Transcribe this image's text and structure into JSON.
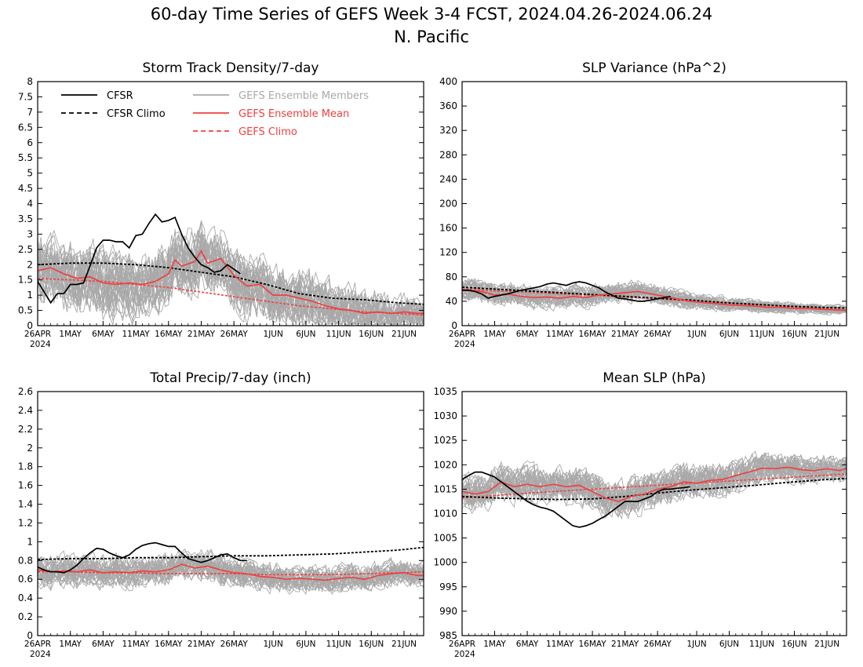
{
  "figure": {
    "title_line1": "60-day Time Series of GEFS Week 3-4 FCST, 2024.04.26-2024.06.24",
    "title_line2": "N. Pacific"
  },
  "colors": {
    "cfsr": "#000000",
    "ens_member": "#a9a9a9",
    "ens_mean": "#f04040",
    "gefs_climo": "#f04040"
  },
  "legend": {
    "cfsr": "CFSR",
    "cfsr_climo": "CFSR Climo",
    "ens_members": "GEFS Ensemble Members",
    "ens_mean": "GEFS Ensemble Mean",
    "gefs_climo": "GEFS Climo"
  },
  "x_axis": {
    "start_date": "2024-04-26",
    "end_date": "2024-06-24",
    "ticks": [
      {
        "day": 0,
        "label": "26APR"
      },
      {
        "day": 5,
        "label": "1MAY"
      },
      {
        "day": 10,
        "label": "6MAY"
      },
      {
        "day": 15,
        "label": "11MAY"
      },
      {
        "day": 20,
        "label": "16MAY"
      },
      {
        "day": 25,
        "label": "21MAY"
      },
      {
        "day": 30,
        "label": "26MAY"
      },
      {
        "day": 36,
        "label": "1JUN"
      },
      {
        "day": 41,
        "label": "6JUN"
      },
      {
        "day": 46,
        "label": "11JUN"
      },
      {
        "day": 51,
        "label": "16JUN"
      },
      {
        "day": 56,
        "label": "21JUN"
      }
    ],
    "year_label": "2024"
  },
  "chart_data": [
    {
      "type": "line",
      "title": "Storm Track Density/7-day",
      "ylim": [
        0,
        8
      ],
      "yticks": [
        "0",
        "0.5",
        "1",
        "1.5",
        "2",
        "2.5",
        "3",
        "3.5",
        "4",
        "4.5",
        "5",
        "5.5",
        "6",
        "6.5",
        "7",
        "7.5",
        "8"
      ],
      "ytick_values": [
        0,
        0.5,
        1,
        1.5,
        2,
        2.5,
        3,
        3.5,
        4,
        4.5,
        5,
        5.5,
        6,
        6.5,
        7,
        7.5,
        8
      ],
      "show_legend": true,
      "member_count": 31,
      "member_spread": [
        1.1,
        1.1,
        1.1,
        1.1,
        1.1,
        1.1,
        1.0,
        1.0,
        1.0,
        0.9,
        0.8,
        0.6,
        0.5
      ],
      "series": [
        {
          "name": "CFSR",
          "x": [
            0,
            1,
            2,
            3,
            4,
            5,
            6,
            7,
            8,
            9,
            10,
            11,
            12,
            13,
            14,
            15,
            16,
            17,
            18,
            19,
            20,
            21,
            22,
            23,
            24,
            25,
            26,
            27,
            28,
            29,
            30,
            31
          ],
          "y": [
            1.45,
            1.1,
            0.75,
            1.05,
            1.05,
            1.35,
            1.35,
            1.4,
            1.95,
            2.55,
            2.8,
            2.8,
            2.75,
            2.75,
            2.55,
            2.95,
            3.0,
            3.35,
            3.65,
            3.4,
            3.45,
            3.55,
            3.0,
            2.55,
            2.25,
            2.0,
            1.9,
            1.75,
            1.8,
            2.0,
            1.85,
            1.7
          ]
        },
        {
          "name": "CFSR Climo",
          "x": [
            0,
            5,
            10,
            15,
            20,
            25,
            30,
            35,
            40,
            45,
            50,
            55,
            59
          ],
          "y": [
            2.0,
            2.05,
            2.05,
            2.0,
            1.9,
            1.75,
            1.6,
            1.35,
            1.05,
            0.9,
            0.85,
            0.75,
            0.7
          ]
        },
        {
          "name": "GEFS Ensemble Mean",
          "x": [
            0,
            2,
            4,
            6,
            8,
            10,
            12,
            14,
            16,
            18,
            20,
            21,
            22,
            24,
            25,
            26,
            28,
            30,
            32,
            34,
            36,
            38,
            40,
            42,
            44,
            46,
            48,
            50,
            52,
            54,
            56,
            58,
            59
          ],
          "y": [
            1.8,
            1.9,
            1.7,
            1.55,
            1.6,
            1.4,
            1.35,
            1.4,
            1.35,
            1.45,
            1.7,
            2.15,
            1.95,
            2.1,
            2.45,
            2.05,
            2.2,
            1.65,
            1.3,
            1.35,
            1.0,
            1.0,
            0.9,
            0.8,
            0.65,
            0.55,
            0.5,
            0.4,
            0.45,
            0.4,
            0.45,
            0.4,
            0.4
          ]
        },
        {
          "name": "GEFS Climo",
          "x": [
            0,
            5,
            10,
            15,
            20,
            25,
            30,
            35,
            40,
            45,
            50,
            55,
            59
          ],
          "y": [
            1.55,
            1.5,
            1.45,
            1.35,
            1.25,
            1.1,
            0.95,
            0.8,
            0.65,
            0.55,
            0.45,
            0.4,
            0.35
          ]
        }
      ]
    },
    {
      "type": "line",
      "title": "SLP Variance (hPa^2)",
      "ylim": [
        0,
        400
      ],
      "yticks": [
        "0",
        "40",
        "80",
        "120",
        "160",
        "200",
        "240",
        "280",
        "320",
        "360",
        "400"
      ],
      "ytick_values": [
        0,
        40,
        80,
        120,
        160,
        200,
        240,
        280,
        320,
        360,
        400
      ],
      "show_legend": false,
      "member_count": 31,
      "member_spread": [
        18,
        18,
        18,
        17,
        17,
        16,
        16,
        14,
        12,
        10,
        9,
        8,
        8
      ],
      "series": [
        {
          "name": "CFSR",
          "x": [
            0,
            1,
            2,
            3,
            4,
            5,
            6,
            7,
            8,
            9,
            10,
            11,
            12,
            13,
            14,
            15,
            16,
            17,
            18,
            19,
            20,
            21,
            22,
            23,
            24,
            25,
            26,
            27,
            28,
            29,
            30,
            31,
            32
          ],
          "y": [
            58,
            58,
            56,
            52,
            45,
            48,
            50,
            52,
            55,
            58,
            60,
            62,
            64,
            68,
            70,
            68,
            66,
            70,
            72,
            70,
            66,
            62,
            55,
            50,
            45,
            44,
            42,
            40,
            40,
            42,
            44,
            46,
            48
          ]
        },
        {
          "name": "CFSR Climo",
          "x": [
            0,
            5,
            10,
            15,
            20,
            25,
            30,
            35,
            40,
            45,
            50,
            55,
            59
          ],
          "y": [
            63,
            60,
            57,
            54,
            51,
            48,
            45,
            42,
            38,
            35,
            32,
            30,
            29
          ]
        },
        {
          "name": "GEFS Ensemble Mean",
          "x": [
            0,
            3,
            5,
            7,
            9,
            11,
            13,
            15,
            17,
            19,
            21,
            23,
            25,
            27,
            29,
            31,
            33,
            35,
            37,
            39,
            41,
            43,
            45,
            47,
            49,
            51,
            53,
            55,
            57,
            59
          ],
          "y": [
            58,
            56,
            50,
            52,
            48,
            46,
            47,
            45,
            48,
            46,
            50,
            52,
            54,
            56,
            52,
            48,
            44,
            40,
            38,
            36,
            34,
            33,
            32,
            30,
            30,
            28,
            28,
            27,
            26,
            25
          ]
        },
        {
          "name": "GEFS Climo",
          "x": [
            0,
            5,
            10,
            15,
            20,
            25,
            30,
            35,
            40,
            45,
            50,
            55,
            59
          ],
          "y": [
            60,
            57,
            55,
            52,
            50,
            47,
            44,
            40,
            37,
            34,
            31,
            28,
            26
          ]
        }
      ]
    },
    {
      "type": "line",
      "title": "Total Precip/7-day (inch)",
      "ylim": [
        0,
        2.6
      ],
      "yticks": [
        "0",
        "0.2",
        "0.4",
        "0.6",
        "0.8",
        "1",
        "1.2",
        "1.4",
        "1.6",
        "1.8",
        "2",
        "2.2",
        "2.4",
        "2.6"
      ],
      "ytick_values": [
        0,
        0.2,
        0.4,
        0.6,
        0.8,
        1.0,
        1.2,
        1.4,
        1.6,
        1.8,
        2.0,
        2.2,
        2.4,
        2.6
      ],
      "show_legend": false,
      "member_count": 31,
      "member_spread": [
        0.16,
        0.16,
        0.16,
        0.16,
        0.15,
        0.15,
        0.15,
        0.14,
        0.14,
        0.14,
        0.13,
        0.13,
        0.13
      ],
      "series": [
        {
          "name": "CFSR",
          "x": [
            0,
            1,
            2,
            3,
            4,
            5,
            6,
            7,
            8,
            9,
            10,
            11,
            12,
            13,
            14,
            15,
            16,
            17,
            18,
            19,
            20,
            21,
            22,
            23,
            24,
            25,
            26,
            27,
            28,
            29,
            30,
            31,
            32
          ],
          "y": [
            0.73,
            0.7,
            0.68,
            0.68,
            0.67,
            0.7,
            0.75,
            0.82,
            0.88,
            0.93,
            0.92,
            0.88,
            0.85,
            0.83,
            0.86,
            0.92,
            0.96,
            0.98,
            0.99,
            0.97,
            0.95,
            0.95,
            0.88,
            0.82,
            0.8,
            0.78,
            0.8,
            0.83,
            0.86,
            0.87,
            0.83,
            0.8,
            0.8
          ]
        },
        {
          "name": "CFSR Climo",
          "x": [
            0,
            5,
            10,
            15,
            20,
            25,
            30,
            35,
            40,
            45,
            50,
            55,
            59
          ],
          "y": [
            0.81,
            0.82,
            0.82,
            0.83,
            0.83,
            0.84,
            0.85,
            0.85,
            0.86,
            0.87,
            0.89,
            0.91,
            0.94
          ]
        },
        {
          "name": "GEFS Ensemble Mean",
          "x": [
            0,
            2,
            4,
            6,
            8,
            10,
            12,
            14,
            16,
            18,
            20,
            22,
            24,
            26,
            28,
            30,
            32,
            34,
            36,
            38,
            40,
            42,
            44,
            46,
            48,
            50,
            52,
            54,
            56,
            58,
            59
          ],
          "y": [
            0.7,
            0.68,
            0.69,
            0.68,
            0.7,
            0.67,
            0.68,
            0.67,
            0.69,
            0.68,
            0.7,
            0.76,
            0.72,
            0.74,
            0.7,
            0.67,
            0.66,
            0.63,
            0.62,
            0.6,
            0.61,
            0.6,
            0.59,
            0.61,
            0.62,
            0.6,
            0.64,
            0.66,
            0.67,
            0.64,
            0.64
          ]
        },
        {
          "name": "GEFS Climo",
          "x": [
            0,
            5,
            10,
            15,
            20,
            25,
            30,
            35,
            40,
            45,
            50,
            55,
            59
          ],
          "y": [
            0.68,
            0.68,
            0.67,
            0.67,
            0.66,
            0.66,
            0.66,
            0.65,
            0.65,
            0.65,
            0.66,
            0.67,
            0.68
          ]
        }
      ]
    },
    {
      "type": "line",
      "title": "Mean SLP (hPa)",
      "ylim": [
        985,
        1035
      ],
      "yticks": [
        "985",
        "990",
        "995",
        "1000",
        "1005",
        "1010",
        "1015",
        "1020",
        "1025",
        "1030",
        "1035"
      ],
      "ytick_values": [
        985,
        990,
        995,
        1000,
        1005,
        1010,
        1015,
        1020,
        1025,
        1030,
        1035
      ],
      "show_legend": false,
      "member_count": 31,
      "member_spread": [
        3.5,
        3.5,
        3.5,
        3.6,
        3.7,
        3.7,
        3.6,
        3.4,
        3.2,
        3.0,
        2.8,
        2.6,
        2.5
      ],
      "series": [
        {
          "name": "CFSR",
          "x": [
            0,
            1,
            2,
            3,
            4,
            5,
            6,
            7,
            8,
            9,
            10,
            11,
            12,
            13,
            14,
            15,
            16,
            17,
            18,
            19,
            20,
            21,
            22,
            23,
            24,
            25,
            26,
            27,
            28,
            29,
            30,
            31,
            32,
            33,
            34,
            35
          ],
          "y": [
            1017,
            1017.8,
            1018.5,
            1018.5,
            1018,
            1017.5,
            1016.5,
            1015.5,
            1014.5,
            1013.5,
            1012.5,
            1011.8,
            1011.3,
            1011,
            1010.5,
            1009.5,
            1008.5,
            1007.5,
            1007.2,
            1007.5,
            1008,
            1008.8,
            1009.5,
            1010.5,
            1011.5,
            1012.5,
            1012.5,
            1012.5,
            1013,
            1013.5,
            1014.5,
            1015,
            1015,
            1015.2,
            1015.3,
            1015.5
          ]
        },
        {
          "name": "CFSR Climo",
          "x": [
            0,
            5,
            10,
            15,
            20,
            25,
            30,
            35,
            40,
            45,
            50,
            55,
            59
          ],
          "y": [
            1013.5,
            1013.2,
            1013,
            1012.9,
            1013,
            1013.5,
            1014.2,
            1014.8,
            1015.3,
            1015.8,
            1016.4,
            1016.9,
            1017.2
          ]
        },
        {
          "name": "GEFS Ensemble Mean",
          "x": [
            0,
            2,
            4,
            6,
            8,
            10,
            12,
            14,
            16,
            18,
            20,
            22,
            24,
            26,
            28,
            30,
            32,
            34,
            36,
            38,
            40,
            42,
            44,
            46,
            48,
            50,
            52,
            54,
            56,
            58,
            59
          ],
          "y": [
            1014.5,
            1014,
            1014.5,
            1016.5,
            1015.5,
            1016,
            1015.5,
            1016,
            1015.5,
            1015.8,
            1014.5,
            1013.2,
            1012.5,
            1013.5,
            1014,
            1015,
            1015.5,
            1016.5,
            1016.2,
            1016.8,
            1017,
            1017.8,
            1018.5,
            1019.3,
            1019.2,
            1019.5,
            1019,
            1018.8,
            1019.2,
            1018.8,
            1019.3
          ]
        },
        {
          "name": "GEFS Climo",
          "x": [
            0,
            5,
            10,
            15,
            20,
            25,
            30,
            35,
            40,
            45,
            50,
            55,
            59
          ],
          "y": [
            1013.2,
            1013.7,
            1014.2,
            1014.6,
            1015,
            1015.4,
            1015.8,
            1016.2,
            1016.6,
            1017,
            1017.4,
            1017.8,
            1018.1
          ]
        }
      ]
    }
  ]
}
